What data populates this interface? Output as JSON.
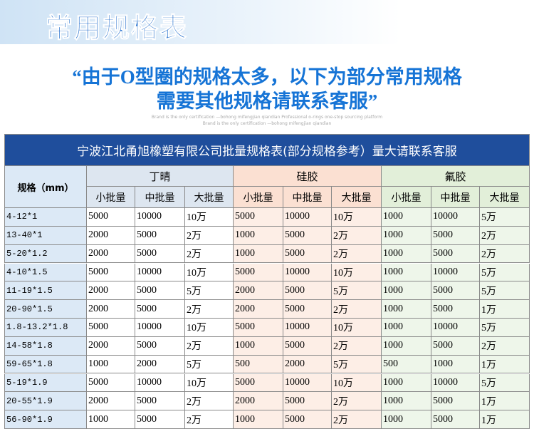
{
  "header": {
    "title": "常用规格表",
    "subtitle_lines": [
      "“由于O型圈的规格太多，以下为部分常用规格",
      "需要其他规格请联系客服”"
    ],
    "brand_lines": [
      "Brand is the only certification —bohong mifengjian qiandian Professional o-rings one-stop sourcing platform",
      "Brand is the only certification —bohong mifengjian qiandian"
    ]
  },
  "table": {
    "title": "宁波江北甬旭橡塑有限公司批量规格表(部分规格参考）量大请联系客服",
    "spec_header": "规格（mm）",
    "groups": [
      {
        "name": "丁晴",
        "columns": [
          "小批量",
          "中批量",
          "大批量"
        ]
      },
      {
        "name": "硅胶",
        "columns": [
          "小批量",
          "中批量",
          "大批量"
        ]
      },
      {
        "name": "氟胶",
        "columns": [
          "小批量",
          "中批量",
          "大批量"
        ]
      }
    ],
    "rows": [
      [
        "4-12*1",
        "5000",
        "10000",
        "10万",
        "5000",
        "10000",
        "10万",
        "1000",
        "10000",
        "5万"
      ],
      [
        "13-40*1",
        "2000",
        "5000",
        "2万",
        "1000",
        "5000",
        "2万",
        "1000",
        "5000",
        "2万"
      ],
      [
        "5-20*1.2",
        "2000",
        "5000",
        "2万",
        "1000",
        "5000",
        "2万",
        "1000",
        "5000",
        "2万"
      ],
      [
        "4-10*1.5",
        "5000",
        "10000",
        "10万",
        "5000",
        "10000",
        "10万",
        "1000",
        "10000",
        "5万"
      ],
      [
        "11-19*1.5",
        "2000",
        "5000",
        "5万",
        "2000",
        "5000",
        "5万",
        "1000",
        "5000",
        "5万"
      ],
      [
        "20-90*1.5",
        "2000",
        "5000",
        "2万",
        "2000",
        "5000",
        "2万",
        "1000",
        "5000",
        "1万"
      ],
      [
        "1.8-13.2*1.8",
        "5000",
        "10000",
        "10万",
        "5000",
        "10000",
        "10万",
        "1000",
        "10000",
        "5万"
      ],
      [
        "14-58*1.8",
        "2000",
        "5000",
        "2万",
        "1000",
        "5000",
        "2万",
        "1000",
        "5000",
        "2万"
      ],
      [
        "59-65*1.8",
        "1000",
        "2000",
        "5万",
        "500",
        "2000",
        "5万",
        "500",
        "1000",
        "1万"
      ],
      [
        "5-19*1.9",
        "5000",
        "10000",
        "10万",
        "5000",
        "10000",
        "10万",
        "1000",
        "10000",
        "5万"
      ],
      [
        "20-55*1.9",
        "2000",
        "5000",
        "2万",
        "2000",
        "5000",
        "2万",
        "1000",
        "5000",
        "1万"
      ],
      [
        "56-90*1.9",
        "1000",
        "5000",
        "2万",
        "1000",
        "5000",
        "2万",
        "1000",
        "5000",
        "1万"
      ]
    ]
  }
}
